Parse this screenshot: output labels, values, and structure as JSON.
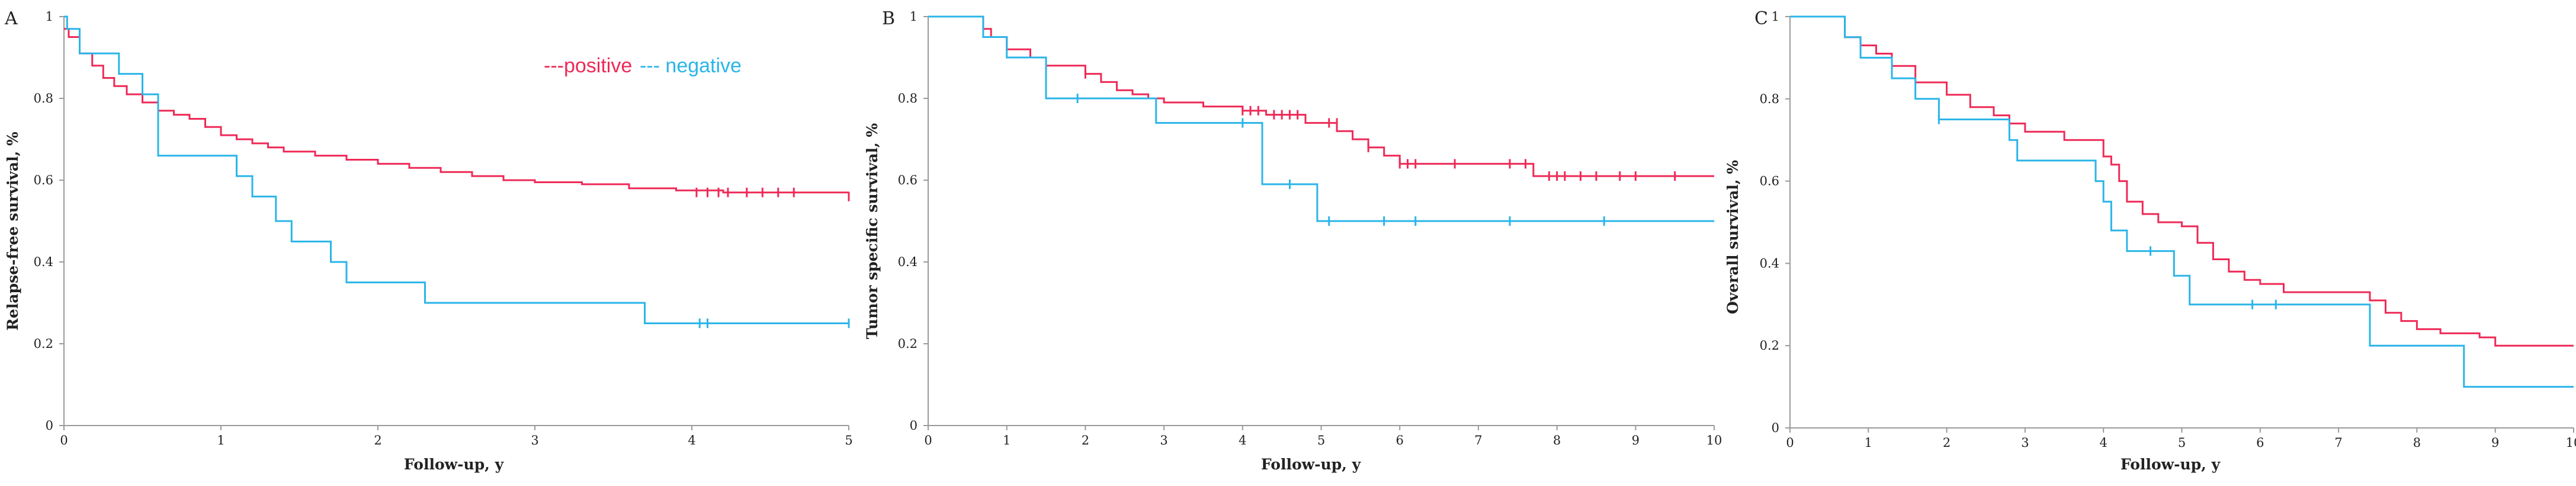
{
  "chart_data": [
    {
      "type": "line",
      "step": true,
      "panel_label": "A",
      "title": "",
      "xlabel": "Follow-up, y",
      "ylabel": "Relapse-free survival, %",
      "xlim": [
        0,
        5
      ],
      "ylim": [
        0,
        1
      ],
      "xticks": [
        0,
        1,
        2,
        3,
        4,
        5
      ],
      "yticks": [
        0,
        0.2,
        0.4,
        0.6,
        0.8,
        1
      ],
      "ytick_labels": [
        "0",
        "0.2",
        "0.4",
        "0.6",
        "0.8",
        "1"
      ],
      "grid": false,
      "legend": {
        "position": "top-center",
        "entries": [
          {
            "text": "---positive",
            "color": "#ee2a57"
          },
          {
            "text": "--- negative",
            "color": "#2bb5e8"
          }
        ]
      },
      "series": [
        {
          "name": "positive",
          "color": "#ee2a57",
          "x": [
            0,
            0.03,
            0.1,
            0.18,
            0.25,
            0.32,
            0.4,
            0.5,
            0.6,
            0.7,
            0.8,
            0.9,
            1.0,
            1.1,
            1.2,
            1.3,
            1.4,
            1.6,
            1.8,
            2.0,
            2.2,
            2.4,
            2.6,
            2.8,
            3.0,
            3.3,
            3.6,
            3.9,
            4.2,
            5.0
          ],
          "y": [
            0.97,
            0.95,
            0.91,
            0.88,
            0.85,
            0.83,
            0.81,
            0.79,
            0.77,
            0.76,
            0.75,
            0.73,
            0.71,
            0.7,
            0.69,
            0.68,
            0.67,
            0.66,
            0.65,
            0.64,
            0.63,
            0.62,
            0.61,
            0.6,
            0.595,
            0.59,
            0.58,
            0.575,
            0.57,
            0.57
          ],
          "censor_x": [
            4.03,
            4.1,
            4.17,
            4.23,
            4.35,
            4.45,
            4.55,
            4.65,
            5.0
          ],
          "censor_y": [
            0.57,
            0.57,
            0.57,
            0.57,
            0.57,
            0.57,
            0.57,
            0.57,
            0.56
          ]
        },
        {
          "name": "negative",
          "color": "#2bb5e8",
          "x": [
            0,
            0.02,
            0.1,
            0.17,
            0.35,
            0.5,
            0.6,
            1.1,
            1.2,
            1.35,
            1.45,
            1.7,
            1.8,
            2.3,
            3.7,
            5.0
          ],
          "y": [
            1.0,
            0.97,
            0.91,
            0.91,
            0.86,
            0.81,
            0.66,
            0.61,
            0.56,
            0.5,
            0.45,
            0.4,
            0.35,
            0.3,
            0.25,
            0.25
          ],
          "censor_x": [
            4.05,
            4.1,
            5.0
          ],
          "censor_y": [
            0.25,
            0.25,
            0.25
          ]
        }
      ]
    },
    {
      "type": "line",
      "step": true,
      "panel_label": "B",
      "title": "",
      "xlabel": "Follow-up, y",
      "ylabel": "Tumor specific survival, %",
      "xlim": [
        0,
        10
      ],
      "ylim": [
        0,
        1
      ],
      "xticks": [
        0,
        1,
        2,
        3,
        4,
        5,
        6,
        7,
        8,
        9,
        10
      ],
      "yticks": [
        0,
        0.2,
        0.4,
        0.6,
        0.8,
        1
      ],
      "ytick_labels": [
        "0",
        "0.2",
        "0.4",
        "0.6",
        "0.8",
        "1"
      ],
      "grid": false,
      "series": [
        {
          "name": "positive",
          "color": "#ee2a57",
          "x": [
            0,
            0.7,
            0.8,
            1.0,
            1.3,
            1.5,
            2.0,
            2.2,
            2.4,
            2.6,
            2.8,
            3.0,
            3.5,
            4.0,
            4.3,
            4.8,
            5.2,
            5.4,
            5.6,
            5.8,
            6.0,
            7.7,
            10.0
          ],
          "y": [
            1.0,
            0.97,
            0.95,
            0.92,
            0.9,
            0.88,
            0.86,
            0.84,
            0.82,
            0.81,
            0.8,
            0.79,
            0.78,
            0.77,
            0.76,
            0.74,
            0.72,
            0.7,
            0.68,
            0.66,
            0.64,
            0.61,
            0.61
          ],
          "censor_x": [
            1.5,
            2.0,
            4.0,
            4.1,
            4.2,
            4.4,
            4.5,
            4.6,
            4.7,
            5.1,
            5.2,
            5.6,
            6.0,
            6.1,
            6.2,
            6.7,
            7.4,
            7.6,
            7.9,
            8.0,
            8.1,
            8.3,
            8.5,
            8.8,
            9.0,
            9.5
          ],
          "censor_y": [
            0.88,
            0.86,
            0.77,
            0.77,
            0.77,
            0.76,
            0.76,
            0.76,
            0.76,
            0.74,
            0.74,
            0.68,
            0.64,
            0.64,
            0.64,
            0.64,
            0.64,
            0.64,
            0.61,
            0.61,
            0.61,
            0.61,
            0.61,
            0.61,
            0.61,
            0.61
          ]
        },
        {
          "name": "negative",
          "color": "#2bb5e8",
          "x": [
            0,
            0.7,
            1.0,
            1.5,
            2.9,
            4.25,
            4.95,
            10.0
          ],
          "y": [
            1.0,
            0.95,
            0.9,
            0.8,
            0.74,
            0.59,
            0.5,
            0.5
          ],
          "censor_x": [
            1.9,
            4.0,
            4.6,
            5.1,
            5.8,
            6.2,
            7.4,
            8.6
          ],
          "censor_y": [
            0.8,
            0.74,
            0.59,
            0.5,
            0.5,
            0.5,
            0.5,
            0.5
          ]
        }
      ]
    },
    {
      "type": "line",
      "step": true,
      "panel_label": "C",
      "title": "",
      "xlabel": "Follow-up, y",
      "ylabel": "Overall survival, %",
      "xlim": [
        0,
        10
      ],
      "ylim": [
        0,
        1
      ],
      "xticks": [
        0,
        1,
        2,
        3,
        4,
        5,
        6,
        7,
        8,
        9,
        10
      ],
      "yticks": [
        0,
        0.2,
        0.4,
        0.6,
        0.8,
        1
      ],
      "ytick_labels": [
        "0",
        "0.2",
        "0.4",
        "0.6",
        "0.8",
        "1"
      ],
      "grid": false,
      "series": [
        {
          "name": "positive",
          "color": "#ee2a57",
          "x": [
            0,
            0.7,
            0.9,
            1.1,
            1.3,
            1.6,
            2.0,
            2.3,
            2.6,
            2.8,
            3.0,
            3.5,
            4.0,
            4.1,
            4.2,
            4.3,
            4.5,
            4.7,
            5.0,
            5.2,
            5.4,
            5.6,
            5.8,
            6.0,
            6.3,
            7.4,
            7.6,
            7.8,
            8.0,
            8.3,
            8.8,
            9.0,
            10.0
          ],
          "y": [
            1.0,
            0.95,
            0.93,
            0.91,
            0.88,
            0.84,
            0.81,
            0.78,
            0.76,
            0.74,
            0.72,
            0.7,
            0.66,
            0.64,
            0.6,
            0.55,
            0.52,
            0.5,
            0.49,
            0.45,
            0.41,
            0.38,
            0.36,
            0.35,
            0.33,
            0.31,
            0.28,
            0.26,
            0.24,
            0.23,
            0.22,
            0.2,
            0.2
          ]
        },
        {
          "name": "negative",
          "color": "#2bb5e8",
          "x": [
            0,
            0.7,
            0.9,
            1.3,
            1.6,
            1.9,
            2.8,
            2.9,
            3.9,
            4.0,
            4.1,
            4.3,
            4.9,
            5.1,
            7.4,
            8.6,
            10.0
          ],
          "y": [
            1.0,
            0.95,
            0.9,
            0.85,
            0.8,
            0.75,
            0.7,
            0.65,
            0.6,
            0.55,
            0.48,
            0.43,
            0.37,
            0.3,
            0.2,
            0.1,
            0.1
          ],
          "censor_x": [
            1.9,
            4.6,
            5.9,
            6.2
          ],
          "censor_y": [
            0.75,
            0.43,
            0.3,
            0.3
          ]
        }
      ]
    }
  ]
}
